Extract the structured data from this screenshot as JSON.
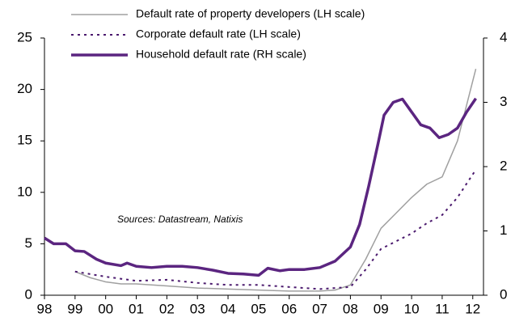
{
  "chart_data": {
    "type": "line",
    "annotation": "Sources: Datastream, Natixis",
    "xlim": [
      1998,
      2012.35
    ],
    "xticks": [
      {
        "value": 1998,
        "label": "98"
      },
      {
        "value": 1999,
        "label": "99"
      },
      {
        "value": 2000,
        "label": "00"
      },
      {
        "value": 2001,
        "label": "01"
      },
      {
        "value": 2002,
        "label": "02"
      },
      {
        "value": 2003,
        "label": "03"
      },
      {
        "value": 2004,
        "label": "04"
      },
      {
        "value": 2005,
        "label": "05"
      },
      {
        "value": 2006,
        "label": "06"
      },
      {
        "value": 2007,
        "label": "07"
      },
      {
        "value": 2008,
        "label": "08"
      },
      {
        "value": 2009,
        "label": "09"
      },
      {
        "value": 2010,
        "label": "10"
      },
      {
        "value": 2011,
        "label": "11"
      },
      {
        "value": 2012,
        "label": "12"
      }
    ],
    "ylim": [
      0,
      25
    ],
    "yticks": [
      0,
      5,
      10,
      15,
      20,
      25
    ],
    "y2lim": [
      0,
      4
    ],
    "y2ticks": [
      0,
      1,
      2,
      3,
      4
    ],
    "series": [
      {
        "name": "Default rate of property developers (LH scale)",
        "color": "#a0a0a0",
        "style": "solid",
        "width": 1.5,
        "x": [
          1999,
          1999.5,
          2000,
          2000.5,
          2001,
          2002,
          2003,
          2004,
          2005,
          2006,
          2007,
          2007.5,
          2008,
          2008.5,
          2009,
          2009.5,
          2010,
          2010.5,
          2011,
          2011.5,
          2012.1
        ],
        "values": [
          2.3,
          1.7,
          1.3,
          1.1,
          1.1,
          0.9,
          0.7,
          0.6,
          0.5,
          0.4,
          0.4,
          0.5,
          1.0,
          3.5,
          6.5,
          8.0,
          9.5,
          10.8,
          11.5,
          15,
          22
        ]
      },
      {
        "name": "Corporate default rate (LH scale)",
        "color": "#4b1a6e",
        "style": "dotted",
        "width": 2,
        "x": [
          1999,
          2000,
          2001,
          2002,
          2003,
          2004,
          2005,
          2006,
          2007,
          2008,
          2008.5,
          2009,
          2010,
          2010.5,
          2011,
          2011.5,
          2012.1
        ],
        "values": [
          2.3,
          1.8,
          1.4,
          1.5,
          1.2,
          1.0,
          1.0,
          0.8,
          0.6,
          0.8,
          2.5,
          4.5,
          6.0,
          7.0,
          7.8,
          9.5,
          12.2
        ]
      },
      {
        "name": "Household default rate (RH scale)",
        "color": "#5b2580",
        "style": "solid",
        "width": 3.5,
        "axis": "y2",
        "x": [
          1998,
          1998.3,
          1998.7,
          1999,
          1999.3,
          1999.7,
          2000,
          2000.5,
          2000.7,
          2001,
          2001.5,
          2002,
          2002.5,
          2003,
          2003.5,
          2004,
          2004.5,
          2005,
          2005.3,
          2005.7,
          2006,
          2006.5,
          2007,
          2007.5,
          2008,
          2008.3,
          2008.6,
          2008.9,
          2009.1,
          2009.4,
          2009.7,
          2010,
          2010.3,
          2010.6,
          2010.9,
          2011.2,
          2011.5,
          2011.8,
          2012.1
        ],
        "values": [
          0.89,
          0.8,
          0.8,
          0.69,
          0.68,
          0.56,
          0.5,
          0.46,
          0.5,
          0.45,
          0.43,
          0.45,
          0.45,
          0.43,
          0.39,
          0.34,
          0.33,
          0.31,
          0.42,
          0.38,
          0.4,
          0.4,
          0.43,
          0.53,
          0.75,
          1.1,
          1.7,
          2.35,
          2.8,
          3.0,
          3.05,
          2.85,
          2.65,
          2.6,
          2.45,
          2.5,
          2.6,
          2.85,
          3.06
        ]
      }
    ]
  }
}
